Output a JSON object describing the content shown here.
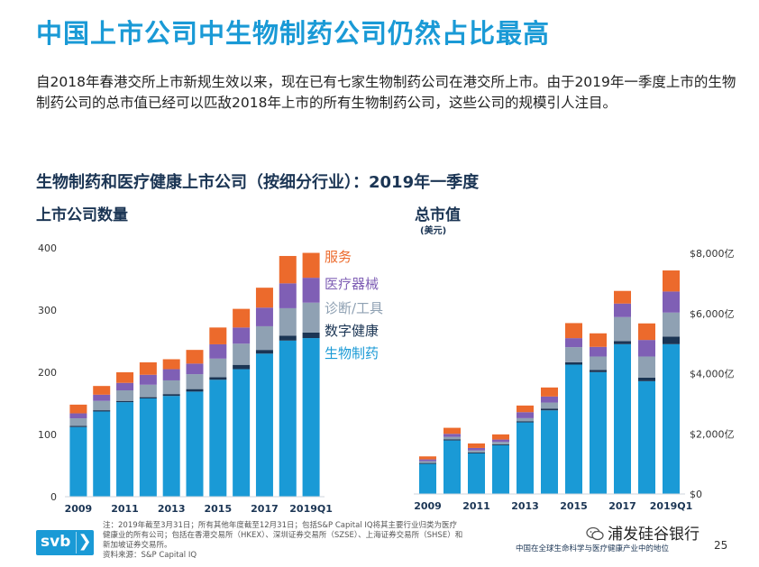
{
  "title": "中国上市公司中生物制药公司仍然占比最高",
  "intro": "自2018年春港交所上市新规生效以来，现在已有七家生物制药公司在港交所上市。由于2019年一季度上市的生物制药公司的总市值已经可以匹敌2018年上市的所有生物制药公司，这些公司的规模引人注目。",
  "subtitle": "生物制药和医疗健康上市公司（按细分行业）：2019年一季度",
  "colors": {
    "title": "#1a9ad6",
    "biopharma": "#1a9ad6",
    "digital_health": "#1b3554",
    "diagnostics": "#8fa1b3",
    "medical_devices": "#7f5fb5",
    "services": "#ec6a2c"
  },
  "legend": [
    {
      "label": "服务",
      "color": "#ec6a2c"
    },
    {
      "label": "医疗器械",
      "color": "#7f5fb5"
    },
    {
      "label": "诊断/工具",
      "color": "#8fa1b3"
    },
    {
      "label": "数字健康",
      "color": "#1b3554"
    },
    {
      "label": "生物制药",
      "color": "#1a9ad6"
    }
  ],
  "chart_data": [
    {
      "type": "bar",
      "stacked": true,
      "title": "上市公司数量",
      "categories": [
        "2009",
        "2010",
        "2011",
        "2012",
        "2013",
        "2014",
        "2015",
        "2016",
        "2017",
        "2018",
        "2019Q1"
      ],
      "x_tick_labels": [
        "2009",
        "",
        "2011",
        "",
        "2013",
        "",
        "2015",
        "",
        "2017",
        "",
        "2019Q1"
      ],
      "ylim": [
        0,
        400
      ],
      "yticks": [
        "0",
        "100",
        "200",
        "300",
        "400"
      ],
      "grid": false,
      "series": [
        {
          "name": "生物制药",
          "values": [
            112,
            137,
            152,
            158,
            162,
            169,
            188,
            205,
            230,
            251,
            255
          ]
        },
        {
          "name": "数字健康",
          "values": [
            2,
            2,
            2,
            2,
            3,
            4,
            4,
            7,
            6,
            8,
            9
          ]
        },
        {
          "name": "诊断/工具",
          "values": [
            12,
            15,
            17,
            20,
            22,
            24,
            30,
            34,
            38,
            44,
            48
          ]
        },
        {
          "name": "医疗器械",
          "values": [
            8,
            10,
            12,
            16,
            18,
            17,
            23,
            26,
            30,
            40,
            40
          ]
        },
        {
          "name": "服务",
          "values": [
            14,
            14,
            17,
            20,
            16,
            22,
            27,
            30,
            32,
            44,
            40
          ]
        }
      ]
    },
    {
      "type": "bar",
      "stacked": true,
      "title": "总市值",
      "unit": "(美元)",
      "categories": [
        "2009",
        "2010",
        "2011",
        "2012",
        "2013",
        "2014",
        "2015",
        "2016",
        "2017",
        "2018",
        "2019Q1"
      ],
      "x_tick_labels": [
        "2009",
        "",
        "2011",
        "",
        "2013",
        "",
        "2015",
        "",
        "2017",
        "",
        "2019Q1"
      ],
      "ylim": [
        0,
        8000
      ],
      "yticks": [
        "$0",
        "$2,000亿",
        "$4,000亿",
        "$6,000亿",
        "$8,000亿"
      ],
      "grid": false,
      "series": [
        {
          "name": "生物制药",
          "values": [
            1000,
            1780,
            1350,
            1620,
            2380,
            2780,
            4300,
            4050,
            4980,
            3750,
            4980
          ]
        },
        {
          "name": "数字健康",
          "values": [
            30,
            40,
            30,
            30,
            40,
            60,
            80,
            70,
            100,
            120,
            250
          ]
        },
        {
          "name": "诊断/工具",
          "values": [
            60,
            80,
            70,
            80,
            100,
            200,
            500,
            450,
            800,
            700,
            800
          ]
        },
        {
          "name": "医疗器械",
          "values": [
            60,
            100,
            80,
            80,
            200,
            200,
            300,
            320,
            450,
            550,
            700
          ]
        },
        {
          "name": "服务",
          "values": [
            100,
            200,
            150,
            170,
            220,
            300,
            500,
            450,
            420,
            550,
            700
          ]
        }
      ]
    }
  ],
  "footnote": "注：2019年截至3月31日；所有其他年度截至12月31日；包括S&P Capital IQ将其主要行业归类为医疗健康业的所有公司；包括在香港交易所（HKEX）、深圳证券交易所（SZSE）、上海证券交易所（SHSE）和新加坡证券交易所。",
  "source": "资料来源：S&P Capital IQ",
  "logo": {
    "text": "svb",
    "chevron": "❯"
  },
  "wechat_label": "浦发硅谷银行",
  "doc_footer": "中国在全球生命科学与医疗健康产业中的地位",
  "page_number": "25"
}
